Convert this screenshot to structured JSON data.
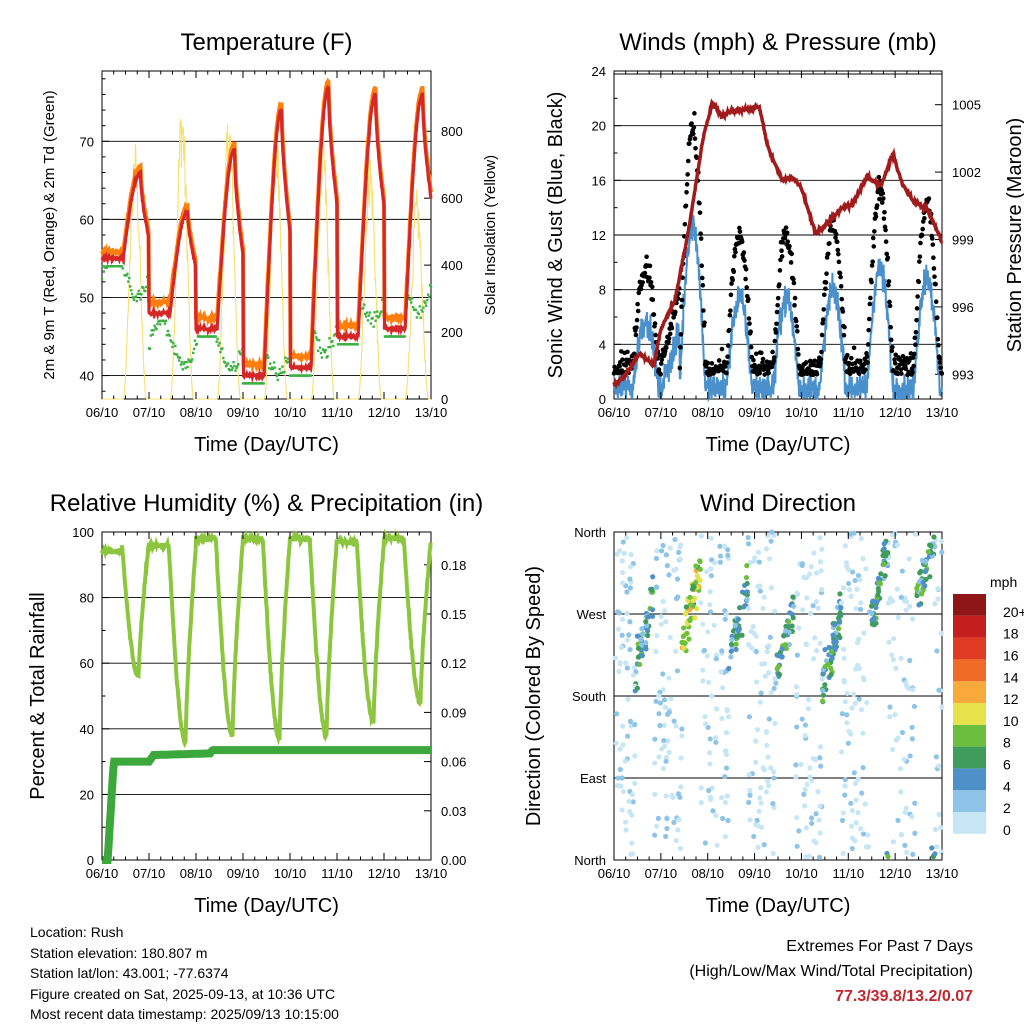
{
  "x_ticks": [
    "06/10",
    "07/10",
    "08/10",
    "09/10",
    "10/10",
    "11/10",
    "12/10",
    "13/10"
  ],
  "chart_data": [
    {
      "type": "line",
      "title": "Temperature (F)",
      "xlabel": "Time (Day/UTC)",
      "ylabel": "2m & 9m T (Red, Orange) & 2m Td (Green)",
      "ylabel_right": "Solar Insolation (Yellow)",
      "x": [
        "06/10",
        "07/10",
        "08/10",
        "09/10",
        "10/10",
        "11/10",
        "12/10",
        "13/10"
      ],
      "ylim": [
        37,
        79
      ],
      "yticks": [
        40,
        50,
        60,
        70
      ],
      "ylim_right": [
        0,
        980
      ],
      "yticks_right": [
        0,
        200,
        400,
        600,
        800
      ],
      "daily_max_T": [
        66,
        61,
        69,
        74,
        77,
        76,
        76
      ],
      "daily_min_T": [
        55,
        48,
        46,
        40,
        41,
        45,
        46,
        48
      ],
      "series": [
        {
          "name": "2m T",
          "color": "#d62728"
        },
        {
          "name": "9m T",
          "color": "#ff7f0e"
        },
        {
          "name": "2m Td",
          "color": "#3cb043"
        },
        {
          "name": "Solar Insolation",
          "color": "#f5e070",
          "daily_peak": [
            780,
            920,
            880,
            840,
            810,
            760,
            630
          ]
        }
      ]
    },
    {
      "type": "line",
      "title": "Winds (mph) & Pressure (mb)",
      "xlabel": "Time (Day/UTC)",
      "ylabel": "Sonic Wind & Gust (Blue, Black)",
      "ylabel_right": "Station Pressure (Maroon)",
      "x": [
        "06/10",
        "07/10",
        "08/10",
        "09/10",
        "10/10",
        "11/10",
        "12/10",
        "13/10"
      ],
      "ylim": [
        0,
        24
      ],
      "yticks": [
        0,
        4,
        8,
        12,
        16,
        20,
        24
      ],
      "ylim_right": [
        991.9,
        1006.5
      ],
      "yticks_right": [
        993,
        996,
        999,
        1002,
        1005
      ],
      "pressure_points": [
        [
          0,
          992.5
        ],
        [
          0.25,
          993.0
        ],
        [
          0.55,
          993.9
        ],
        [
          0.85,
          993.4
        ],
        [
          1.0,
          995.0
        ],
        [
          1.3,
          996.3
        ],
        [
          1.6,
          999.5
        ],
        [
          1.9,
          1003.5
        ],
        [
          2.1,
          1005.1
        ],
        [
          2.3,
          1004.5
        ],
        [
          2.5,
          1004.7
        ],
        [
          2.8,
          1004.8
        ],
        [
          3.1,
          1004.9
        ],
        [
          3.3,
          1003.0
        ],
        [
          3.6,
          1001.6
        ],
        [
          3.8,
          1001.8
        ],
        [
          4.0,
          1001.3
        ],
        [
          4.3,
          999.3
        ],
        [
          4.5,
          999.6
        ],
        [
          4.8,
          1000.3
        ],
        [
          5.1,
          1000.6
        ],
        [
          5.4,
          1001.8
        ],
        [
          5.7,
          1001.4
        ],
        [
          5.95,
          1002.8
        ],
        [
          6.15,
          1001.5
        ],
        [
          6.4,
          1000.7
        ],
        [
          6.7,
          1000.3
        ],
        [
          7.0,
          998.9
        ]
      ],
      "gust_daily_peak": [
        9,
        22,
        12,
        12,
        13,
        16,
        15
      ],
      "series": [
        {
          "name": "Sonic Wind",
          "color": "#4a90cc"
        },
        {
          "name": "Gust",
          "color": "#000000"
        },
        {
          "name": "Station Pressure",
          "color": "#a01b1b"
        }
      ]
    },
    {
      "type": "line",
      "title": "Relative Humidity (%) & Precipitation (in)",
      "xlabel": "Time (Day/UTC)",
      "ylabel": "Percent & Total Rainfall",
      "x": [
        "06/10",
        "07/10",
        "08/10",
        "09/10",
        "10/10",
        "11/10",
        "12/10",
        "13/10"
      ],
      "ylim": [
        0,
        100
      ],
      "yticks": [
        0,
        20,
        40,
        60,
        80,
        100
      ],
      "ylim_right": [
        0,
        0.2
      ],
      "yticks_right": [
        "0.00",
        "0.03",
        "0.06",
        "0.09",
        "0.12",
        "0.15",
        "0.18"
      ],
      "rh_daily_min": [
        56,
        36,
        38,
        37,
        38,
        42,
        48
      ],
      "rh_daily_max": [
        97,
        96,
        98,
        98,
        98,
        97,
        98
      ],
      "precip_total": [
        [
          0,
          0
        ],
        [
          0.12,
          0.0
        ],
        [
          0.25,
          0.06
        ],
        [
          1.0,
          0.06
        ],
        [
          1.1,
          0.064
        ],
        [
          2.3,
          0.065
        ],
        [
          2.35,
          0.067
        ],
        [
          7.0,
          0.067
        ]
      ],
      "series": [
        {
          "name": "Relative Humidity",
          "color": "#8cc63f"
        },
        {
          "name": "Total Precipitation",
          "color": "#3ca83c"
        }
      ]
    },
    {
      "type": "scatter",
      "title": "Wind Direction",
      "xlabel": "Time (Day/UTC)",
      "ylabel": "Direction (Colored By Speed)",
      "x": [
        "06/10",
        "07/10",
        "08/10",
        "09/10",
        "10/10",
        "11/10",
        "12/10",
        "13/10"
      ],
      "yticks": [
        "North",
        "East",
        "South",
        "West",
        "North"
      ],
      "ylim": [
        0,
        360
      ],
      "colorbar": {
        "unit": "mph",
        "labels": [
          "0",
          "2",
          "4",
          "6",
          "8",
          "10",
          "12",
          "14",
          "16",
          "18",
          "20+"
        ],
        "colors": [
          "#c6e6f6",
          "#8ec4e8",
          "#4f90c8",
          "#3f9c5a",
          "#6cbf3c",
          "#e6e24a",
          "#f7a93c",
          "#ef6b28",
          "#de3a24",
          "#c41e1e",
          "#8f1616"
        ]
      }
    }
  ],
  "info": {
    "location": "Location: Rush",
    "elevation": "Station elevation: 180.807 m",
    "latlon": "Station lat/lon: 43.001; -77.6374",
    "created": "Figure created on Sat, 2025-09-13, at 10:36 UTC",
    "recent": "Most recent data timestamp: 2025/09/13 10:15:00"
  },
  "extremes": {
    "heading": "Extremes For Past 7 Days",
    "subheading": "(High/Low/Max Wind/Total Precipitation)",
    "values": "77.3/39.8/13.2/0.07"
  }
}
